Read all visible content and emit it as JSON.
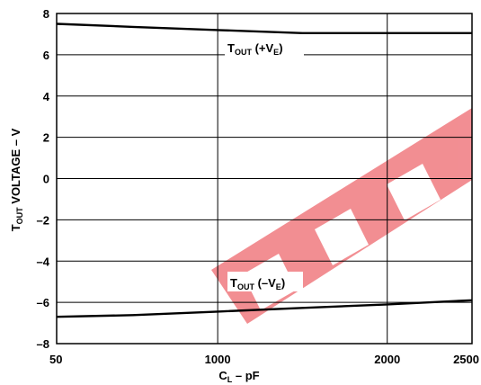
{
  "chart_data": {
    "type": "line",
    "title": "",
    "xlabel": {
      "main": "C",
      "sub": "L",
      "rest": " – pF"
    },
    "ylabel": {
      "main": "T",
      "sub": "OUT",
      "rest": " VOLTAGE – V"
    },
    "x_ticks": [
      {
        "value": 50,
        "label": "50"
      },
      {
        "value": 1000,
        "label": "1000"
      },
      {
        "value": 2000,
        "label": "2000"
      },
      {
        "value": 2500,
        "label": "2500"
      }
    ],
    "y_ticks": [
      8,
      6,
      4,
      2,
      0,
      -2,
      -4,
      -6,
      -8
    ],
    "y_tick_labels": [
      "8",
      "6",
      "4",
      "2",
      "0",
      "–2",
      "–4",
      "–6",
      "–8"
    ],
    "xlim": [
      50,
      2500
    ],
    "ylim": [
      -8,
      8
    ],
    "grid": true,
    "series": [
      {
        "name_main": "T",
        "name_sub": "OUT",
        "name_rest": " (+V",
        "name_sub2": "E",
        "name_end": ")",
        "x": [
          50,
          500,
          1000,
          1500,
          2000,
          2500
        ],
        "y": [
          7.5,
          7.35,
          7.2,
          7.05,
          7.05,
          7.05
        ]
      },
      {
        "name_main": "T",
        "name_sub": "OUT",
        "name_rest": " (–V",
        "name_sub2": "E",
        "name_end": ")",
        "x": [
          50,
          500,
          1000,
          1500,
          2000,
          2500
        ],
        "y": [
          -6.7,
          -6.62,
          -6.45,
          -6.27,
          -6.1,
          -5.9
        ]
      }
    ]
  }
}
